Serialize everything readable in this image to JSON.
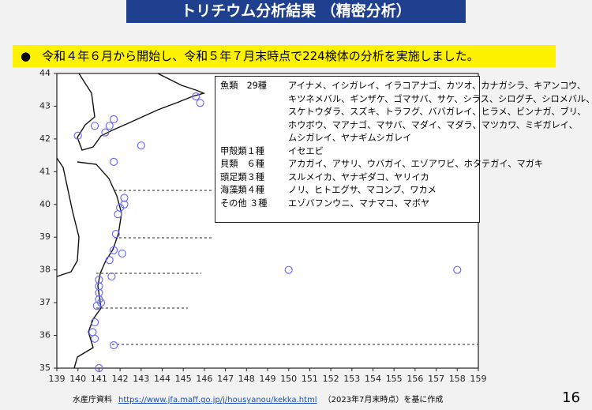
{
  "header": {
    "title": "トリチウム分析結果 （精密分析）"
  },
  "bullet": {
    "marker": "●",
    "text": "令和４年６月から開始し、令和５年７月末時点で224検体の分析を実施しました。"
  },
  "species_box": {
    "rows": [
      {
        "label": "魚類　29種",
        "text": [
          "アイナメ、イシガレイ、イラコアナゴ、カツオ、カナガシラ、キアンコウ、",
          "キツネメバル、ギンザケ、ゴマサバ、サケ、シラス、シログチ、シロメバル、",
          "スケトウダラ、スズキ、トラフグ、ババガレイ、ヒラメ、ビンナガ、ブリ、",
          "ホウボウ、マアナゴ、マサバ、マダイ、マダラ、マツカワ、ミギガレイ、",
          "ムシガレイ、ヤナギムシガレイ"
        ]
      },
      {
        "label": "甲殻類１種",
        "text": [
          "イセエビ"
        ]
      },
      {
        "label": "貝類　６種",
        "text": [
          "アカガイ、アサリ、ウバガイ、エゾアワビ、ホタテガイ、マガキ"
        ]
      },
      {
        "label": "頭足類３種",
        "text": [
          "スルメイカ、ヤナギダコ、ヤリイカ"
        ]
      },
      {
        "label": "海藻類４種",
        "text": [
          "ノリ、ヒトエグサ、マコンブ、ワカメ"
        ]
      },
      {
        "label": "その他 ３種",
        "text": [
          "エゾバフンウニ、マナマコ、マボヤ"
        ]
      }
    ]
  },
  "footer": {
    "source": "水産庁資料",
    "url": "https://www.jfa.maff.go.jp/j/housyanou/kekka.html",
    "note": "（2023年7月末時点）を基に作成",
    "page": "16"
  },
  "chart_data": {
    "type": "scatter",
    "color": "#6b6bff",
    "x": [
      140.0,
      140.8,
      141.3,
      141.5,
      141.7,
      143.0,
      141.7,
      145.6,
      145.8,
      142.2,
      142.2,
      142.0,
      141.9,
      141.8,
      141.7,
      142.1,
      141.5,
      141.6,
      141.0,
      141.0,
      141.0,
      141.0,
      141.1,
      140.9,
      140.8,
      140.7,
      140.8,
      141.7,
      141.0,
      150.0,
      158.0
    ],
    "values": [
      42.1,
      42.4,
      42.2,
      42.4,
      42.6,
      41.8,
      41.3,
      43.3,
      43.1,
      40.2,
      40.0,
      39.9,
      39.7,
      39.1,
      38.6,
      38.5,
      38.3,
      37.8,
      37.7,
      37.5,
      37.3,
      37.1,
      37.0,
      36.9,
      36.4,
      36.1,
      35.9,
      35.7,
      35.0,
      38.0,
      38.0
    ],
    "xlim": [
      139,
      159
    ],
    "ylim": [
      35,
      44
    ],
    "xticks": [
      139,
      140,
      141,
      142,
      143,
      144,
      145,
      146,
      147,
      148,
      149,
      150,
      151,
      152,
      153,
      154,
      155,
      156,
      157,
      158,
      159
    ],
    "yticks": [
      35,
      36,
      37,
      38,
      39,
      40,
      41,
      42,
      43,
      44
    ]
  }
}
